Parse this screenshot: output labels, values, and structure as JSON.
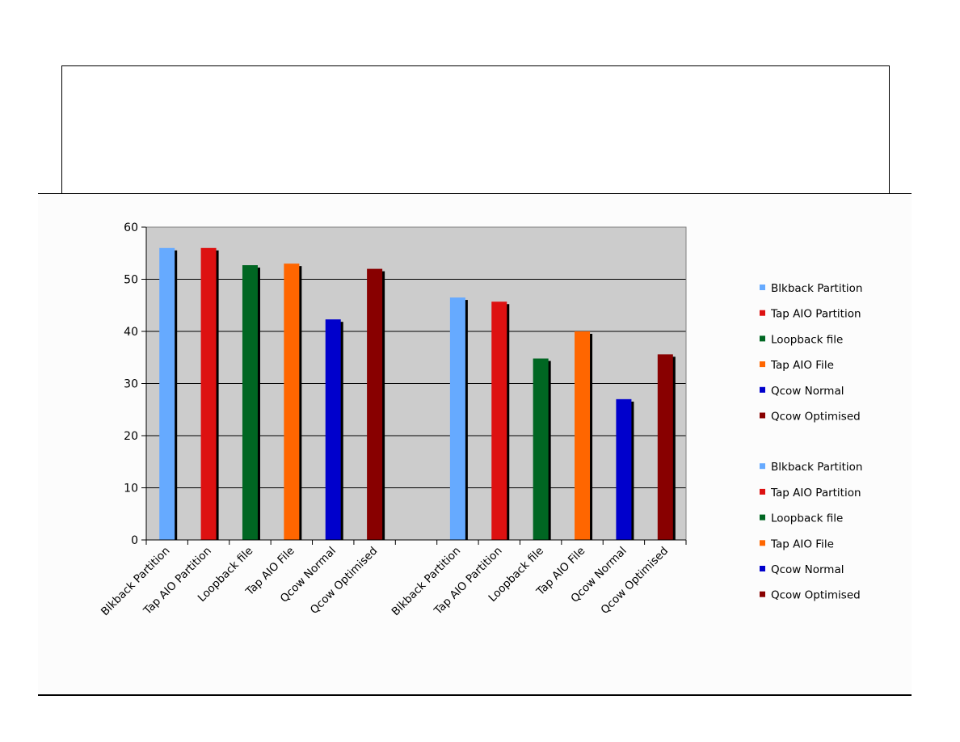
{
  "chart_data": {
    "type": "bar",
    "title": "",
    "xlabel": "",
    "ylabel": "",
    "ylim": [
      0,
      60
    ],
    "yticks": [
      0,
      10,
      20,
      30,
      40,
      50,
      60
    ],
    "grid": true,
    "legend_position": "right",
    "categories": [
      "Blkback Partition",
      "Tap AIO Partition",
      "Loopback file",
      "Tap AIO File",
      "Qcow Normal",
      "Qcow Optimised",
      "Blkback Partition",
      "Tap AIO Partition",
      "Loopback file",
      "Tap AIO File",
      "Qcow Normal",
      "Qcow Optimised"
    ],
    "values": [
      56,
      56,
      52.7,
      53,
      42.3,
      52,
      46.5,
      45.7,
      34.8,
      40,
      27,
      35.6
    ],
    "bar_colors": [
      "#66aaff",
      "#dd1111",
      "#006622",
      "#ff6600",
      "#0000cc",
      "#880000",
      "#66aaff",
      "#dd1111",
      "#006622",
      "#ff6600",
      "#0000cc",
      "#880000"
    ],
    "legend": [
      {
        "label": "Blkback Partition",
        "color": "#66aaff"
      },
      {
        "label": "Tap AIO Partition",
        "color": "#dd1111"
      },
      {
        "label": "Loopback file",
        "color": "#006622"
      },
      {
        "label": "Tap AIO File",
        "color": "#ff6600"
      },
      {
        "label": "Qcow Normal",
        "color": "#0000cc"
      },
      {
        "label": "Qcow Optimised",
        "color": "#880000"
      },
      {
        "label": "Blkback Partition",
        "color": "#66aaff"
      },
      {
        "label": "Tap AIO Partition",
        "color": "#dd1111"
      },
      {
        "label": "Loopback file",
        "color": "#006622"
      },
      {
        "label": "Tap AIO File",
        "color": "#ff6600"
      },
      {
        "label": "Qcow Normal",
        "color": "#0000cc"
      },
      {
        "label": "Qcow Optimised",
        "color": "#880000"
      }
    ],
    "plot_background": "#cccccc"
  }
}
